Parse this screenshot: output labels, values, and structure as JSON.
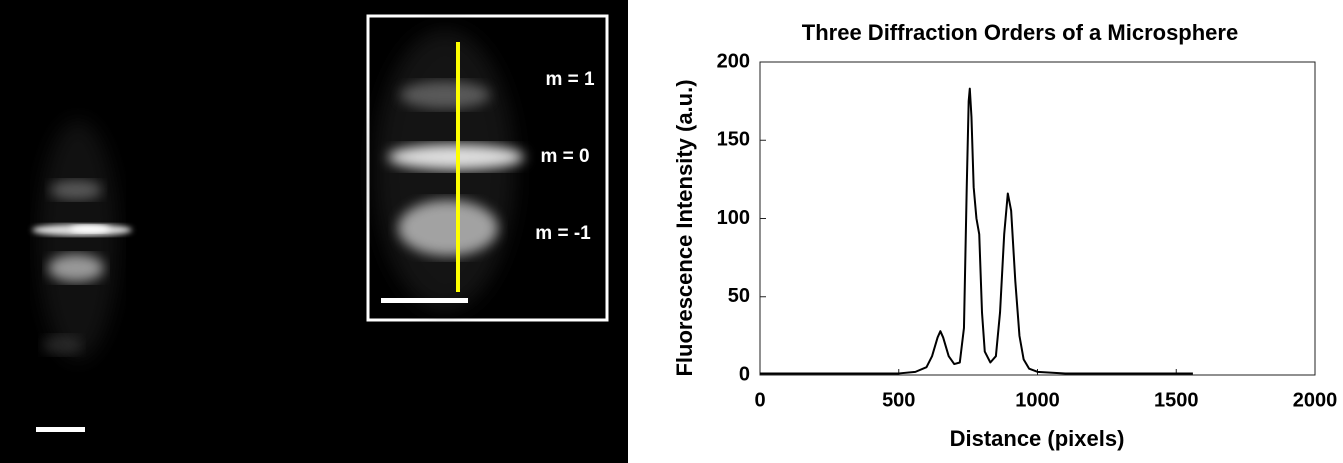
{
  "image": {
    "labels": [
      "m = 1",
      "m = 0",
      "m = -1"
    ]
  },
  "chart_data": {
    "type": "line",
    "title": "Three Diffraction Orders of a Microsphere",
    "x_label": "Distance (pixels)",
    "y_label": "Fluorescence Intensity (a.u.)",
    "x": [
      0,
      100,
      200,
      300,
      400,
      500,
      560,
      600,
      620,
      640,
      650,
      660,
      680,
      700,
      720,
      735,
      745,
      752,
      756,
      762,
      770,
      780,
      790,
      795,
      800,
      810,
      830,
      850,
      865,
      880,
      893,
      905,
      920,
      935,
      950,
      970,
      1000,
      1100,
      1200,
      1300,
      1400,
      1500,
      1560
    ],
    "values": [
      1,
      1,
      1,
      1,
      1,
      1,
      2,
      5,
      12,
      24,
      28,
      24,
      12,
      7,
      8,
      30,
      120,
      175,
      183,
      165,
      120,
      100,
      90,
      65,
      40,
      15,
      8,
      12,
      40,
      90,
      116,
      105,
      60,
      25,
      10,
      4,
      2,
      1,
      1,
      1,
      1,
      1,
      1
    ],
    "color": "#000000",
    "xlim": [
      0,
      2000
    ],
    "xticks": [
      0,
      500,
      1000,
      1500,
      2000
    ],
    "ylim": [
      0,
      200
    ],
    "yticks": [
      0,
      50,
      100,
      150,
      200
    ],
    "grid": false
  }
}
